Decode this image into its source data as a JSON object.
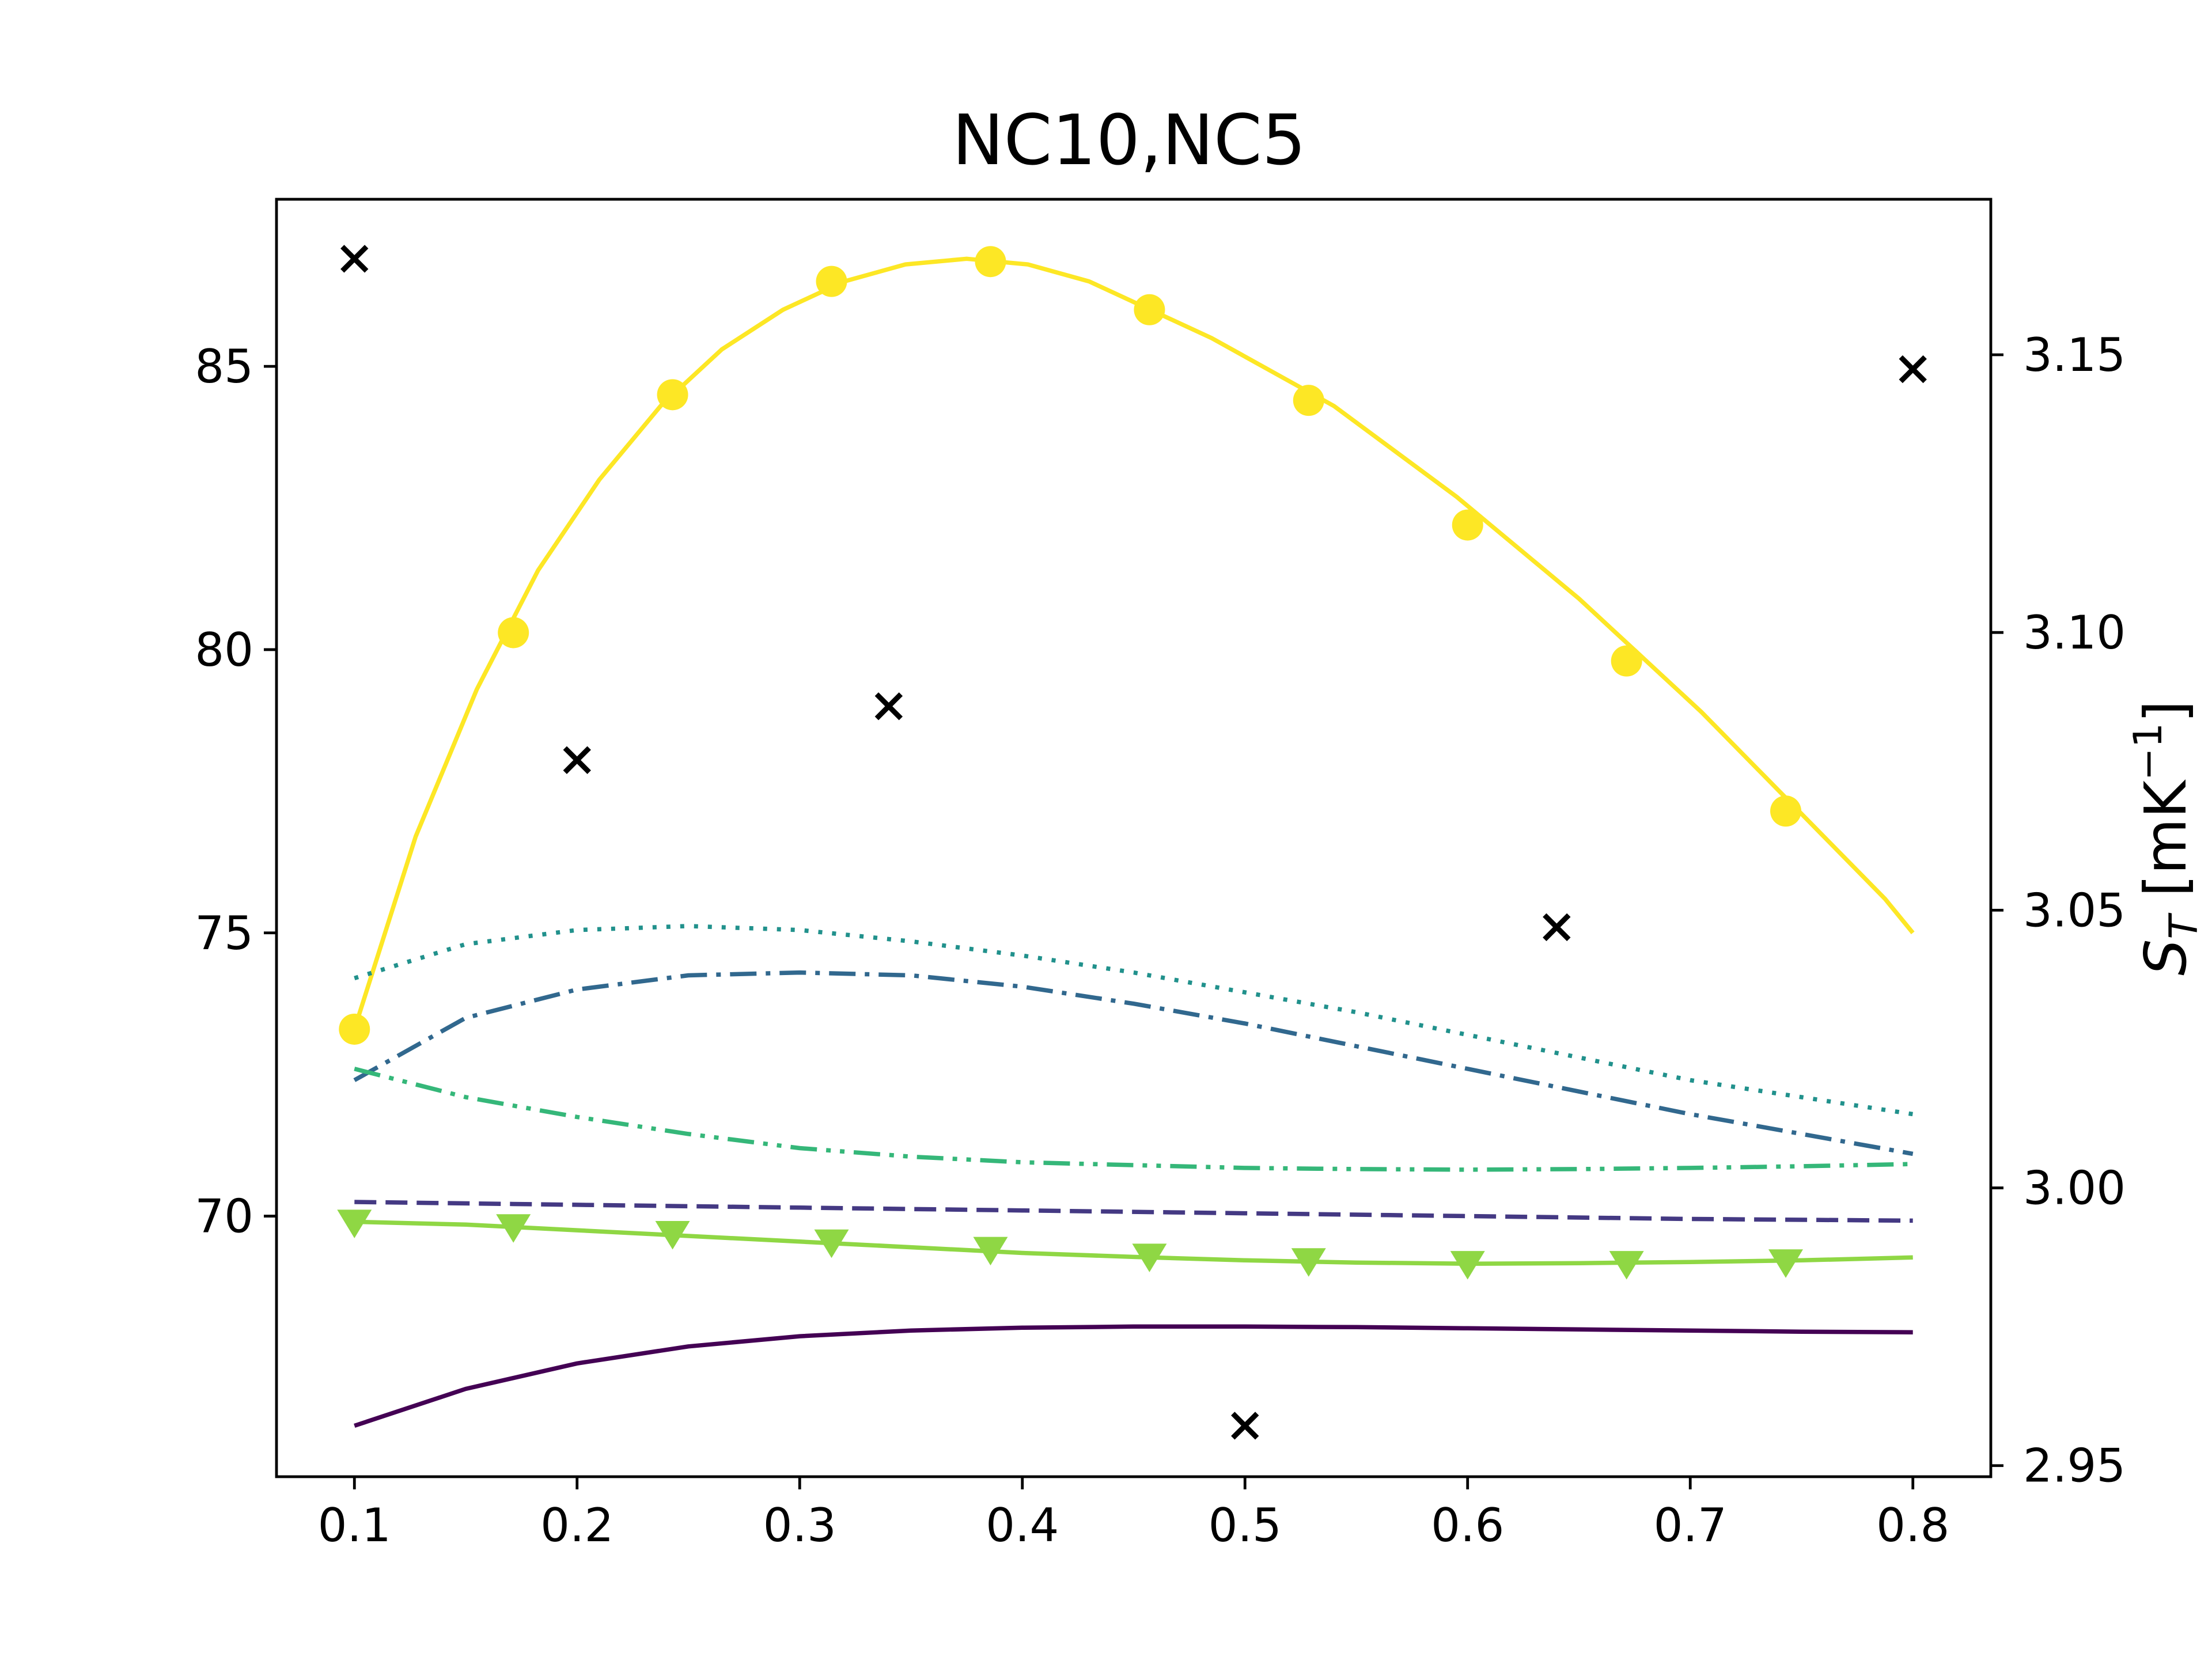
{
  "chart_data": {
    "type": "line",
    "title": "NC10,NC5",
    "xlabel": "",
    "ylabel": "",
    "ylabel_right": "S_T [mK⁻¹]",
    "ylabel_right_parts": {
      "symbol": "S",
      "sub": "T",
      "unit_open": " [mK",
      "exp": "−1",
      "unit_close": "]"
    },
    "xlim": [
      0.065,
      0.835
    ],
    "ylim": [
      65.4,
      87.95
    ],
    "ylim_right": [
      2.948,
      3.178
    ],
    "xticks": [
      0.1,
      0.2,
      0.3,
      0.4,
      0.5,
      0.6,
      0.7,
      0.8
    ],
    "xtick_labels": [
      "0.1",
      "0.2",
      "0.3",
      "0.4",
      "0.5",
      "0.6",
      "0.7",
      "0.8"
    ],
    "yticks": [
      70,
      75,
      80,
      85
    ],
    "ytick_labels": [
      "70",
      "75",
      "80",
      "85"
    ],
    "yticks_right": [
      2.95,
      3.0,
      3.05,
      3.1,
      3.15
    ],
    "ytick_labels_right": [
      "2.95",
      "3.00",
      "3.05",
      "3.10",
      "3.15"
    ],
    "grid": false,
    "legend": "none",
    "series": [
      {
        "axis": "left",
        "color": "#fde725",
        "line": "solid",
        "marker": "circle",
        "x": [
          0.1,
          0.1275,
          0.155,
          0.1825,
          0.21,
          0.2375,
          0.265,
          0.2925,
          0.32,
          0.3475,
          0.375,
          0.4025,
          0.43,
          0.4575,
          0.485,
          0.5125,
          0.54,
          0.5675,
          0.595,
          0.6225,
          0.65,
          0.6775,
          0.705,
          0.7325,
          0.76,
          0.7875,
          0.8
        ],
        "y": [
          73.3,
          76.7,
          79.3,
          81.4,
          83.0,
          84.3,
          85.3,
          86.0,
          86.5,
          86.8,
          86.9,
          86.8,
          86.5,
          86.0,
          85.5,
          84.9,
          84.3,
          83.5,
          82.7,
          81.8,
          80.9,
          79.9,
          78.9,
          77.8,
          76.7,
          75.6,
          75.0
        ],
        "marker_x": [
          0.1,
          0.1714,
          0.2429,
          0.3143,
          0.3857,
          0.4571,
          0.5286,
          0.6,
          0.6714,
          0.7429
        ],
        "marker_y": [
          73.3,
          80.3,
          84.5,
          86.5,
          86.85,
          86.0,
          84.4,
          82.2,
          79.8,
          77.15
        ]
      },
      {
        "axis": "left",
        "color": "#21918c",
        "line": "dotted",
        "marker": "none",
        "x": [
          0.1,
          0.15,
          0.2,
          0.25,
          0.3,
          0.35,
          0.4,
          0.45,
          0.5,
          0.55,
          0.6,
          0.65,
          0.7,
          0.75,
          0.8
        ],
        "y": [
          74.2,
          74.8,
          75.05,
          75.12,
          75.05,
          74.85,
          74.6,
          74.3,
          73.95,
          73.6,
          73.2,
          72.8,
          72.4,
          72.1,
          71.8
        ]
      },
      {
        "axis": "left",
        "color": "#31688e",
        "line": "dashdot",
        "marker": "none",
        "x": [
          0.1,
          0.15,
          0.2,
          0.25,
          0.3,
          0.35,
          0.4,
          0.45,
          0.5,
          0.55,
          0.6,
          0.65,
          0.7,
          0.75,
          0.8
        ],
        "y": [
          72.4,
          73.5,
          74.0,
          74.25,
          74.3,
          74.25,
          74.05,
          73.75,
          73.4,
          73.0,
          72.6,
          72.2,
          71.8,
          71.45,
          71.1
        ]
      },
      {
        "axis": "left",
        "color": "#35b779",
        "line": "dashdotdot",
        "marker": "none",
        "x": [
          0.1,
          0.15,
          0.2,
          0.25,
          0.3,
          0.35,
          0.4,
          0.45,
          0.5,
          0.55,
          0.6,
          0.65,
          0.7,
          0.75,
          0.8
        ],
        "y": [
          72.6,
          72.1,
          71.75,
          71.45,
          71.2,
          71.05,
          70.95,
          70.9,
          70.85,
          70.83,
          70.82,
          70.83,
          70.85,
          70.88,
          70.92
        ]
      },
      {
        "axis": "left",
        "color": "#443983",
        "line": "dashed",
        "marker": "none",
        "x": [
          0.1,
          0.2,
          0.3,
          0.4,
          0.5,
          0.6,
          0.7,
          0.8
        ],
        "y": [
          70.25,
          70.2,
          70.15,
          70.1,
          70.05,
          70.0,
          69.95,
          69.92
        ]
      },
      {
        "axis": "left",
        "color": "#8fd744",
        "line": "solid",
        "marker": "triangle-down",
        "x": [
          0.1,
          0.15,
          0.2,
          0.25,
          0.3,
          0.35,
          0.4,
          0.45,
          0.5,
          0.55,
          0.6,
          0.65,
          0.7,
          0.75,
          0.8
        ],
        "y": [
          69.9,
          69.85,
          69.75,
          69.65,
          69.55,
          69.45,
          69.35,
          69.28,
          69.22,
          69.18,
          69.16,
          69.17,
          69.19,
          69.22,
          69.27
        ],
        "marker_x": [
          0.1,
          0.1714,
          0.2429,
          0.3143,
          0.3857,
          0.4571,
          0.5286,
          0.6,
          0.6714,
          0.7429
        ],
        "marker_y": [
          69.9,
          69.82,
          69.7,
          69.55,
          69.42,
          69.3,
          69.22,
          69.17,
          69.17,
          69.2
        ]
      },
      {
        "axis": "left",
        "color": "#440154",
        "line": "solid",
        "marker": "none",
        "x": [
          0.1,
          0.15,
          0.2,
          0.25,
          0.3,
          0.35,
          0.4,
          0.45,
          0.5,
          0.55,
          0.6,
          0.65,
          0.7,
          0.75,
          0.8
        ],
        "y": [
          66.3,
          66.95,
          67.4,
          67.7,
          67.88,
          67.98,
          68.03,
          68.05,
          68.05,
          68.04,
          68.02,
          68.0,
          67.98,
          67.96,
          67.95
        ]
      },
      {
        "axis": "left",
        "color": "#000000",
        "line": "none",
        "marker": "x",
        "x": [
          0.1,
          0.2,
          0.34,
          0.5,
          0.64,
          0.8
        ],
        "y": [
          86.9,
          78.05,
          79.0,
          66.3,
          75.1,
          84.95
        ]
      }
    ]
  }
}
